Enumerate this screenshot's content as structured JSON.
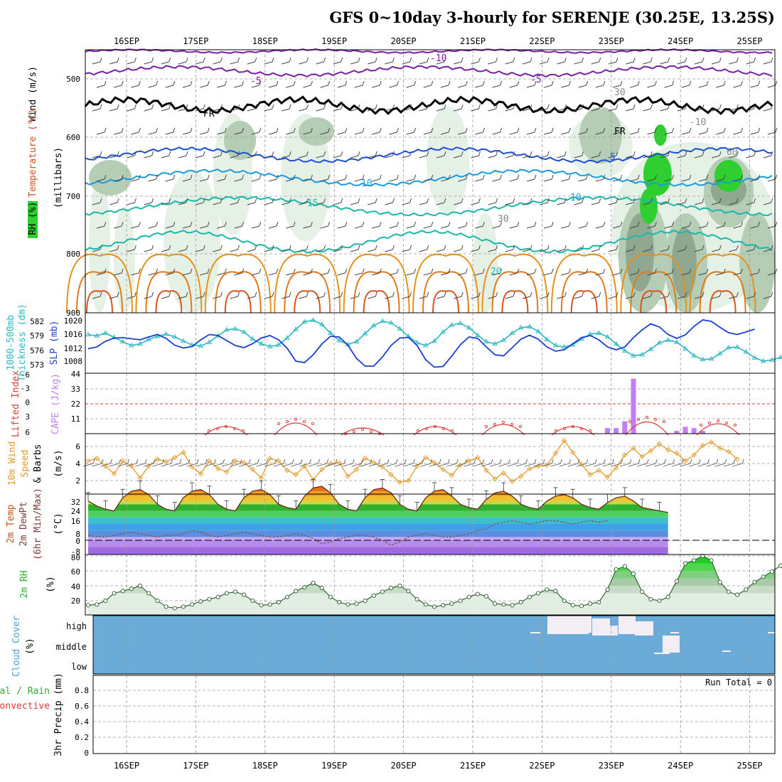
{
  "title": "GFS 0~10day 3-hourly for SERENJE (30.25E, 13.25S)",
  "date_labels": [
    "16SEP",
    "17SEP",
    "18SEP",
    "19SEP",
    "20SEP",
    "21SEP",
    "22SEP",
    "23SEP",
    "24SEP",
    "25SEP"
  ],
  "colors": {
    "rh_green": "#2fcf2f",
    "rh_light": "#e3f0e3",
    "rh_mid": "#b5ccb5",
    "rh_dark": "#6f8a6f",
    "temp_purple": "#7a1fa8",
    "temp_blue": "#1b4fd6",
    "temp_lightblue": "#1a9ae0",
    "temp_teal": "#18b8a8",
    "temp_orange": "#e5921a",
    "freezing": "#000000",
    "thickness": "#2ab7c6",
    "slp": "#1b3fd0",
    "cape_bar": "#c27df0",
    "lifted": "#e03a3a",
    "wind_speed": "#e79a2a",
    "barb": "#555555",
    "cloud_bg": "#6aabd8",
    "cloud_patch": "#f3eef4"
  },
  "panels": {
    "upper": {
      "labels": {
        "rh": "RH (%)",
        "temp": "Temperature (°C)",
        "wind": "Wind (m/s)",
        "units": "(millibars)"
      },
      "y_ticks": [
        "500",
        "600",
        "700",
        "800",
        "900"
      ],
      "contour_labels": [
        "-10",
        "-5",
        "-5",
        "FR",
        "FR",
        "5",
        "10",
        "10",
        "15",
        "20",
        "30",
        "30",
        "60",
        "-10"
      ]
    },
    "thickness": {
      "label_left": "1000-500mb",
      "label_left2": "Thickness (dm)",
      "label_right": "SLP (mb)",
      "y_ticks_left": [
        "582",
        "579",
        "576",
        "573"
      ],
      "y_ticks_right": [
        "1020",
        "1016",
        "1012",
        "1008"
      ]
    },
    "cape": {
      "label_left": "Lifted Index",
      "label_right": "CAPE (J/kg)",
      "y_ticks_left": [
        "-6",
        "-3",
        "0",
        "3",
        "6"
      ],
      "y_ticks_right": [
        "44",
        "33",
        "22",
        "11"
      ]
    },
    "wind10": {
      "label_a": "10m Wind",
      "label_b": "Speed",
      "label_c": "& Barbs",
      "units": "(m/s)",
      "y_ticks": [
        "6",
        "4",
        "2"
      ]
    },
    "temp2m": {
      "label_a": "2m Temp",
      "label_b": "2m DewPt",
      "label_c": "(6hr Min/Max)",
      "units": "(°C)",
      "y_ticks": [
        "32",
        "24",
        "16",
        "8",
        "0",
        "-8"
      ]
    },
    "rh2m": {
      "label": "2m RH",
      "units": "(%)",
      "y_ticks": [
        "80",
        "60",
        "40",
        "20"
      ]
    },
    "cloud": {
      "label": "Cloud Cover",
      "units": "(%)",
      "y_ticks": [
        "high",
        "middle",
        "low"
      ]
    },
    "precip": {
      "label_a": "Total / Rain",
      "label_b": "Convective",
      "label_c": "3hr Precip (mm)",
      "y_ticks": [
        "0.8",
        "0.6",
        "0.4",
        "0.2",
        "0"
      ],
      "run_total": "Run Total = 0"
    }
  },
  "chart_data": [
    {
      "type": "line",
      "title": "1000-500mb Thickness (dm) / SLP (mb)",
      "x": "3-hourly steps from 15SEP 12Z to 25SEP 06Z",
      "series": [
        {
          "name": "1000-500mb Thickness (dm)",
          "values": [
            579.5,
            579.3,
            579.8,
            579.0,
            578.2,
            577.5,
            577.8,
            578.6,
            579.2,
            579.6,
            579.1,
            578.3,
            577.6,
            577.4,
            578.1,
            579.3,
            580.4,
            580.6,
            580.0,
            578.7,
            577.8,
            577.3,
            577.6,
            578.9,
            580.5,
            581.9,
            582.2,
            581.4,
            579.8,
            578.4,
            577.7,
            578.2,
            579.7,
            581.2,
            582.0,
            581.7,
            580.6,
            579.2,
            578.0,
            577.5,
            578.3,
            580.0,
            581.3,
            581.6,
            580.8,
            579.4,
            578.2,
            577.8,
            578.5,
            579.8,
            580.8,
            581.0,
            580.1,
            578.6,
            577.5,
            577.2,
            577.6,
            578.7,
            579.6,
            579.8,
            579.1,
            577.8,
            576.5,
            575.6,
            575.8,
            576.8,
            578.0,
            578.5,
            578.1,
            576.9,
            575.6,
            574.9,
            575.0,
            576.0,
            577.1,
            577.2,
            576.3,
            575.2,
            574.6,
            574.8,
            575.3,
            575.0,
            574.3,
            573.7,
            574.1,
            574.8
          ]
        },
        {
          "name": "SLP (mb)",
          "values": [
            1012.5,
            1013.0,
            1014.6,
            1015.5,
            1015.6,
            1015.3,
            1015.0,
            1015.8,
            1016.5,
            1015.4,
            1013.5,
            1012.7,
            1013.1,
            1015.0,
            1016.5,
            1016.2,
            1014.8,
            1013.4,
            1012.8,
            1013.9,
            1015.5,
            1016.2,
            1015.0,
            1012.6,
            1009.0,
            1008.6,
            1010.8,
            1013.8,
            1016.0,
            1015.8,
            1013.5,
            1009.8,
            1007.6,
            1007.6,
            1010.2,
            1013.4,
            1015.5,
            1015.7,
            1013.4,
            1009.4,
            1007.3,
            1007.5,
            1010.4,
            1013.6,
            1015.8,
            1015.4,
            1013.0,
            1010.8,
            1010.5,
            1012.8,
            1015.2,
            1016.3,
            1015.2,
            1013.0,
            1011.8,
            1012.2,
            1013.9,
            1015.6,
            1016.2,
            1015.0,
            1013.0,
            1012.2,
            1013.0,
            1015.6,
            1017.8,
            1019.5,
            1018.6,
            1016.5,
            1015.4,
            1016.4,
            1018.8,
            1020.6,
            1020.2,
            1018.5,
            1017.0,
            1016.5,
            1017.2,
            1018.0
          ]
        }
      ]
    },
    {
      "type": "bar",
      "title": "CAPE (J/kg)",
      "x_index": [
        60,
        61,
        62,
        63,
        64,
        65,
        68,
        69,
        70,
        71
      ],
      "values": [
        4,
        4,
        9,
        40,
        0,
        0,
        2,
        5,
        4,
        2
      ]
    },
    {
      "type": "line",
      "title": "10m Wind Speed (m/s)",
      "values": [
        4.3,
        4.6,
        3.7,
        2.8,
        4.3,
        3.7,
        2.3,
        3.7,
        4.5,
        4.2,
        4.7,
        5.3,
        3.6,
        2.8,
        4.3,
        3.4,
        3.0,
        4.3,
        4.1,
        3.3,
        2.3,
        4.6,
        4.3,
        3.2,
        2.7,
        3.7,
        2.1,
        3.3,
        4.0,
        4.1,
        2.5,
        3.3,
        4.6,
        4.1,
        3.6,
        2.7,
        1.8,
        2.0,
        3.7,
        4.7,
        4.1,
        3.3,
        2.6,
        3.8,
        4.3,
        4.7,
        3.2,
        2.2,
        2.9,
        1.9,
        2.5,
        3.4,
        3.7,
        3.8,
        5.2,
        6.7,
        5.3,
        3.9,
        2.7,
        3.2,
        2.4,
        3.5,
        5.0,
        5.8,
        4.8,
        5.5,
        6.3,
        5.6,
        5.2,
        4.3,
        5.0,
        6.1,
        6.5,
        5.8,
        5.4,
        4.5
      ]
    },
    {
      "type": "area",
      "title": "2m Temp / 2m DewPt (°C)",
      "series": [
        {
          "name": "2m Temp",
          "values": [
            24,
            21,
            19,
            18,
            26,
            30,
            31,
            28,
            22,
            19,
            18,
            26,
            30,
            31,
            28,
            22,
            19,
            18,
            26,
            30,
            31,
            28,
            22,
            20,
            19,
            27,
            32,
            33,
            29,
            22,
            19,
            18,
            26,
            31,
            32,
            29,
            22,
            19,
            18,
            26,
            30,
            31,
            27,
            22,
            20,
            19,
            25,
            29,
            30,
            27,
            22,
            20,
            19,
            24,
            27,
            28,
            26,
            22,
            20,
            19,
            23,
            26,
            27,
            24,
            20,
            19,
            18,
            17
          ]
        },
        {
          "name": "2m DewPt",
          "values": [
            3,
            2,
            2,
            3,
            4,
            5,
            4,
            3,
            2,
            3,
            3,
            4,
            6,
            5,
            3,
            2,
            3,
            4,
            5,
            4,
            3,
            2,
            2,
            3,
            4,
            3,
            1,
            -2,
            -1,
            1,
            2,
            3,
            3,
            2,
            0,
            -3,
            -1,
            2,
            3,
            4,
            3,
            2,
            2,
            3,
            4,
            6,
            7,
            10,
            11,
            12,
            11,
            10,
            11,
            12,
            12,
            11,
            10,
            11,
            12,
            11,
            12
          ]
        }
      ]
    },
    {
      "type": "area",
      "title": "2m RH (%)",
      "values": [
        14,
        15,
        20,
        30,
        33,
        36,
        40,
        30,
        20,
        12,
        10,
        12,
        15,
        19,
        22,
        25,
        30,
        32,
        28,
        20,
        14,
        15,
        18,
        25,
        33,
        38,
        44,
        37,
        25,
        18,
        15,
        16,
        20,
        27,
        32,
        37,
        40,
        33,
        22,
        15,
        12,
        14,
        16,
        20,
        25,
        29,
        26,
        16,
        15,
        14,
        18,
        25,
        30,
        35,
        33,
        20,
        14,
        13,
        16,
        18,
        35,
        62,
        66,
        56,
        32,
        22,
        20,
        25,
        46,
        70,
        74,
        80,
        74,
        45,
        32,
        28,
        35,
        45,
        52,
        59,
        67,
        50
      ]
    },
    {
      "type": "table",
      "title": "3hr Precip (mm)",
      "values": [],
      "ylim": [
        0,
        1
      ]
    }
  ]
}
